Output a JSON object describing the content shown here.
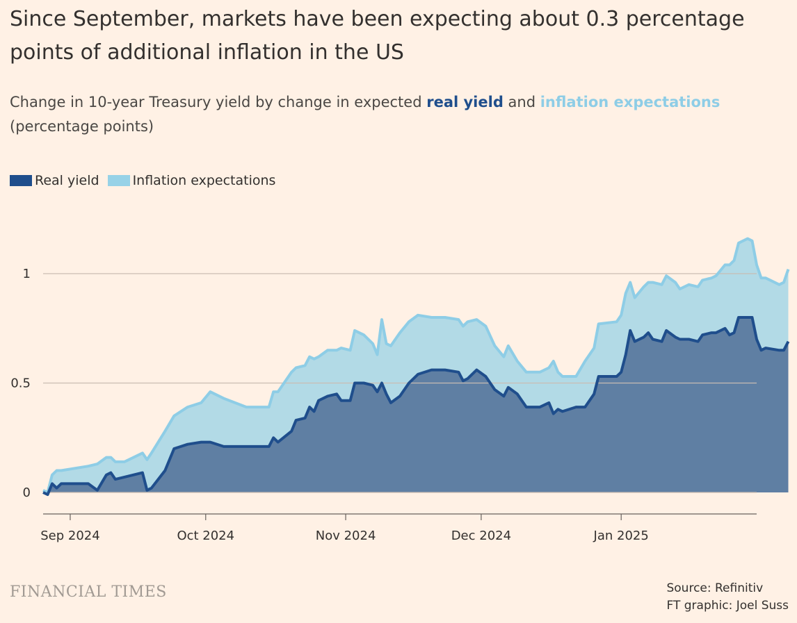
{
  "title": "Since September, markets have been expecting about 0.3 percentage points of additional inflation in the US",
  "subtitle": {
    "prefix": "Change in 10-year Treasury yield by change in expected ",
    "real": "real yield",
    "and": " and ",
    "inflation": "inflation expectations",
    "units": "(percentage points)"
  },
  "legend": {
    "real": "Real yield",
    "inflation": "Inflation expectations"
  },
  "footer": {
    "brand": "FINANCIAL TIMES",
    "source": "Source: Refinitiv",
    "credit": "FT graphic: Joel Suss"
  },
  "colors": {
    "background": "#fff1e5",
    "real_fill": "#5f7fa3",
    "real_line": "#1f4e8c",
    "total_fill": "#b2dae6",
    "total_line": "#8ecde6",
    "grid": "#c9bdb2"
  },
  "chart_data": {
    "type": "area",
    "stacked": true,
    "x_axis": {
      "ticks": [
        "2024-09-01",
        "2024-10-01",
        "2024-11-01",
        "2024-12-01",
        "2025-01-01"
      ],
      "tick_labels": [
        "Sep 2024",
        "Oct 2024",
        "Nov 2024",
        "Dec 2024",
        "Jan 2025"
      ],
      "range": [
        "2024-08-26",
        "2025-01-31"
      ]
    },
    "y_axis": {
      "ticks": [
        0,
        0.5,
        1
      ],
      "tick_labels": [
        "0",
        "0.5",
        "1"
      ],
      "range": [
        -0.1,
        1.25
      ]
    },
    "grid": true,
    "legend_position": "top-left",
    "series": [
      {
        "name": "Real yield",
        "points": [
          [
            "2024-08-26",
            0.0
          ],
          [
            "2024-08-27",
            -0.01
          ],
          [
            "2024-08-28",
            0.04
          ],
          [
            "2024-08-29",
            0.02
          ],
          [
            "2024-08-30",
            0.04
          ],
          [
            "2024-09-05",
            0.04
          ],
          [
            "2024-09-07",
            0.01
          ],
          [
            "2024-09-09",
            0.08
          ],
          [
            "2024-09-10",
            0.09
          ],
          [
            "2024-09-11",
            0.06
          ],
          [
            "2024-09-13",
            0.07
          ],
          [
            "2024-09-17",
            0.09
          ],
          [
            "2024-09-18",
            0.01
          ],
          [
            "2024-09-19",
            0.02
          ],
          [
            "2024-09-22",
            0.1
          ],
          [
            "2024-09-24",
            0.2
          ],
          [
            "2024-09-27",
            0.22
          ],
          [
            "2024-09-30",
            0.23
          ],
          [
            "2024-10-02",
            0.23
          ],
          [
            "2024-10-05",
            0.21
          ],
          [
            "2024-10-10",
            0.21
          ],
          [
            "2024-10-15",
            0.21
          ],
          [
            "2024-10-16",
            0.25
          ],
          [
            "2024-10-17",
            0.23
          ],
          [
            "2024-10-20",
            0.28
          ],
          [
            "2024-10-21",
            0.33
          ],
          [
            "2024-10-23",
            0.34
          ],
          [
            "2024-10-24",
            0.39
          ],
          [
            "2024-10-25",
            0.37
          ],
          [
            "2024-10-26",
            0.42
          ],
          [
            "2024-10-28",
            0.44
          ],
          [
            "2024-10-30",
            0.45
          ],
          [
            "2024-10-31",
            0.42
          ],
          [
            "2024-11-02",
            0.42
          ],
          [
            "2024-11-03",
            0.5
          ],
          [
            "2024-11-05",
            0.5
          ],
          [
            "2024-11-07",
            0.49
          ],
          [
            "2024-11-08",
            0.46
          ],
          [
            "2024-11-09",
            0.5
          ],
          [
            "2024-11-10",
            0.45
          ],
          [
            "2024-11-11",
            0.41
          ],
          [
            "2024-11-13",
            0.44
          ],
          [
            "2024-11-15",
            0.5
          ],
          [
            "2024-11-17",
            0.54
          ],
          [
            "2024-11-20",
            0.56
          ],
          [
            "2024-11-23",
            0.56
          ],
          [
            "2024-11-26",
            0.55
          ],
          [
            "2024-11-27",
            0.51
          ],
          [
            "2024-11-28",
            0.52
          ],
          [
            "2024-11-30",
            0.56
          ],
          [
            "2024-12-02",
            0.53
          ],
          [
            "2024-12-04",
            0.47
          ],
          [
            "2024-12-06",
            0.44
          ],
          [
            "2024-12-07",
            0.48
          ],
          [
            "2024-12-09",
            0.45
          ],
          [
            "2024-12-11",
            0.39
          ],
          [
            "2024-12-14",
            0.39
          ],
          [
            "2024-12-16",
            0.41
          ],
          [
            "2024-12-17",
            0.36
          ],
          [
            "2024-12-18",
            0.38
          ],
          [
            "2024-12-19",
            0.37
          ],
          [
            "2024-12-22",
            0.39
          ],
          [
            "2024-12-24",
            0.39
          ],
          [
            "2024-12-26",
            0.45
          ],
          [
            "2024-12-27",
            0.53
          ],
          [
            "2024-12-31",
            0.53
          ],
          [
            "2025-01-01",
            0.55
          ],
          [
            "2025-01-02",
            0.63
          ],
          [
            "2025-01-03",
            0.74
          ],
          [
            "2025-01-04",
            0.69
          ],
          [
            "2025-01-06",
            0.71
          ],
          [
            "2025-01-07",
            0.73
          ],
          [
            "2025-01-08",
            0.7
          ],
          [
            "2025-01-10",
            0.69
          ],
          [
            "2025-01-11",
            0.74
          ],
          [
            "2025-01-13",
            0.71
          ],
          [
            "2025-01-14",
            0.7
          ],
          [
            "2025-01-16",
            0.7
          ],
          [
            "2025-01-18",
            0.69
          ],
          [
            "2025-01-19",
            0.72
          ],
          [
            "2025-01-21",
            0.73
          ],
          [
            "2025-01-22",
            0.73
          ],
          [
            "2025-01-24",
            0.75
          ],
          [
            "2025-01-25",
            0.72
          ],
          [
            "2025-01-26",
            0.73
          ],
          [
            "2025-01-27",
            0.8
          ],
          [
            "2025-01-29",
            0.8
          ],
          [
            "2025-01-30",
            0.8
          ],
          [
            "2025-01-31",
            0.7
          ],
          [
            "2025-02-01",
            0.65
          ],
          [
            "2025-02-02",
            0.66
          ],
          [
            "2025-02-05",
            0.65
          ],
          [
            "2025-02-06",
            0.65
          ],
          [
            "2025-02-07",
            0.69
          ]
        ]
      },
      {
        "name": "Inflation expectations",
        "points": [
          [
            "2024-08-26",
            0.01
          ],
          [
            "2024-08-27",
            0.0
          ],
          [
            "2024-08-28",
            0.08
          ],
          [
            "2024-08-29",
            0.1
          ],
          [
            "2024-08-30",
            0.1
          ],
          [
            "2024-09-05",
            0.12
          ],
          [
            "2024-09-07",
            0.13
          ],
          [
            "2024-09-09",
            0.16
          ],
          [
            "2024-09-10",
            0.16
          ],
          [
            "2024-09-11",
            0.14
          ],
          [
            "2024-09-13",
            0.14
          ],
          [
            "2024-09-17",
            0.18
          ],
          [
            "2024-09-18",
            0.15
          ],
          [
            "2024-09-19",
            0.18
          ],
          [
            "2024-09-22",
            0.28
          ],
          [
            "2024-09-24",
            0.35
          ],
          [
            "2024-09-27",
            0.39
          ],
          [
            "2024-09-30",
            0.41
          ],
          [
            "2024-10-02",
            0.46
          ],
          [
            "2024-10-05",
            0.43
          ],
          [
            "2024-10-10",
            0.39
          ],
          [
            "2024-10-15",
            0.39
          ],
          [
            "2024-10-16",
            0.46
          ],
          [
            "2024-10-17",
            0.46
          ],
          [
            "2024-10-20",
            0.55
          ],
          [
            "2024-10-21",
            0.57
          ],
          [
            "2024-10-23",
            0.58
          ],
          [
            "2024-10-24",
            0.62
          ],
          [
            "2024-10-25",
            0.61
          ],
          [
            "2024-10-26",
            0.62
          ],
          [
            "2024-10-28",
            0.65
          ],
          [
            "2024-10-30",
            0.65
          ],
          [
            "2024-10-31",
            0.66
          ],
          [
            "2024-11-02",
            0.65
          ],
          [
            "2024-11-03",
            0.74
          ],
          [
            "2024-11-05",
            0.72
          ],
          [
            "2024-11-07",
            0.68
          ],
          [
            "2024-11-08",
            0.63
          ],
          [
            "2024-11-09",
            0.79
          ],
          [
            "2024-11-10",
            0.68
          ],
          [
            "2024-11-11",
            0.67
          ],
          [
            "2024-11-13",
            0.73
          ],
          [
            "2024-11-15",
            0.78
          ],
          [
            "2024-11-17",
            0.81
          ],
          [
            "2024-11-20",
            0.8
          ],
          [
            "2024-11-23",
            0.8
          ],
          [
            "2024-11-26",
            0.79
          ],
          [
            "2024-11-27",
            0.76
          ],
          [
            "2024-11-28",
            0.78
          ],
          [
            "2024-11-30",
            0.79
          ],
          [
            "2024-12-02",
            0.76
          ],
          [
            "2024-12-04",
            0.67
          ],
          [
            "2024-12-06",
            0.62
          ],
          [
            "2024-12-07",
            0.67
          ],
          [
            "2024-12-09",
            0.6
          ],
          [
            "2024-12-11",
            0.55
          ],
          [
            "2024-12-14",
            0.55
          ],
          [
            "2024-12-16",
            0.57
          ],
          [
            "2024-12-17",
            0.6
          ],
          [
            "2024-12-18",
            0.55
          ],
          [
            "2024-12-19",
            0.53
          ],
          [
            "2024-12-22",
            0.53
          ],
          [
            "2024-12-24",
            0.6
          ],
          [
            "2024-12-26",
            0.66
          ],
          [
            "2024-12-27",
            0.77
          ],
          [
            "2024-12-31",
            0.78
          ],
          [
            "2025-01-01",
            0.81
          ],
          [
            "2025-01-02",
            0.91
          ],
          [
            "2025-01-03",
            0.96
          ],
          [
            "2025-01-04",
            0.89
          ],
          [
            "2025-01-06",
            0.94
          ],
          [
            "2025-01-07",
            0.96
          ],
          [
            "2025-01-08",
            0.96
          ],
          [
            "2025-01-10",
            0.95
          ],
          [
            "2025-01-11",
            0.99
          ],
          [
            "2025-01-13",
            0.96
          ],
          [
            "2025-01-14",
            0.93
          ],
          [
            "2025-01-16",
            0.95
          ],
          [
            "2025-01-18",
            0.94
          ],
          [
            "2025-01-19",
            0.97
          ],
          [
            "2025-01-21",
            0.98
          ],
          [
            "2025-01-22",
            0.99
          ],
          [
            "2025-01-24",
            1.04
          ],
          [
            "2025-01-25",
            1.04
          ],
          [
            "2025-01-26",
            1.06
          ],
          [
            "2025-01-27",
            1.14
          ],
          [
            "2025-01-29",
            1.16
          ],
          [
            "2025-01-30",
            1.15
          ],
          [
            "2025-01-31",
            1.04
          ],
          [
            "2025-02-01",
            0.98
          ],
          [
            "2025-02-02",
            0.98
          ],
          [
            "2025-02-05",
            0.95
          ],
          [
            "2025-02-06",
            0.96
          ],
          [
            "2025-02-07",
            1.02
          ]
        ]
      }
    ]
  }
}
